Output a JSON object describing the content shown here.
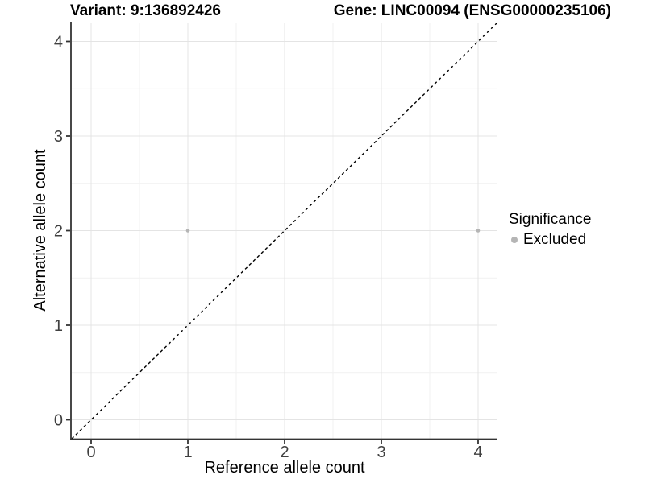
{
  "chart_data": {
    "type": "scatter",
    "title_left": "Variant: 9:136892426",
    "title_right": "Gene: LINC00094 (ENSG00000235106)",
    "xlabel": "Reference allele count",
    "ylabel": "Alternative allele count",
    "xlim": [
      -0.2,
      4.2
    ],
    "ylim": [
      -0.2,
      4.2
    ],
    "xticks": [
      0,
      1,
      2,
      3,
      4
    ],
    "yticks": [
      0,
      1,
      2,
      3,
      4
    ],
    "xminor": [
      0.5,
      1.5,
      2.5,
      3.5
    ],
    "yminor": [
      0.5,
      1.5,
      2.5,
      3.5
    ],
    "grid": "on",
    "series": [
      {
        "name": "Excluded",
        "marker": "circle",
        "color": "#b5b5b5",
        "points": [
          {
            "x": 1,
            "y": 2
          },
          {
            "x": 4,
            "y": 2
          }
        ]
      }
    ],
    "reference_line": {
      "slope": 1,
      "intercept": 0,
      "linetype": "dashed",
      "color": "#000000"
    },
    "legend": {
      "title": "Significance",
      "position": "right",
      "items": [
        {
          "label": "Excluded",
          "color": "#b5b5b5",
          "marker": "circle"
        }
      ]
    }
  },
  "colors": {
    "background": "#ffffff",
    "grid_major": "#e4e4e4",
    "grid_minor": "#f1f1f1",
    "axis_line": "#333333",
    "tick_label": "#404040",
    "point": "#b5b5b5",
    "reference_line": "#000000"
  }
}
